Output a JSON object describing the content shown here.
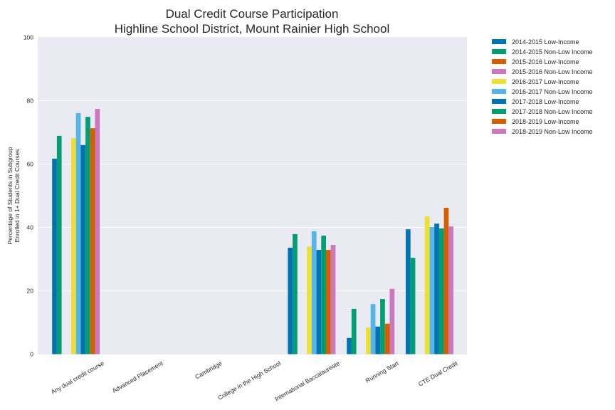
{
  "chart_data": {
    "type": "bar",
    "title": "Dual Credit Course Participation",
    "subtitle": "Highline School District, Mount Rainier High School",
    "xlabel": "",
    "ylabel": "Percentage of Students in Subgroup\nEnrolled in 1+ Dual Credit Courses",
    "ylabel_lines": [
      "Percentage of Students in Subgroup",
      "Enrolled in 1+ Dual Credit Courses"
    ],
    "ylim": [
      0,
      100
    ],
    "yticks": [
      0,
      20,
      40,
      60,
      80,
      100
    ],
    "grid": true,
    "legend_position": "outside-right-top",
    "categories": [
      "Any dual credit course",
      "Advanced Placement",
      "Cambridge",
      "College in the High School",
      "International Baccalaureate",
      "Running Start",
      "CTE Dual Credit"
    ],
    "series": [
      {
        "name": "2014-2015 Low-Income",
        "color": "#0173B2",
        "values": [
          61.7,
          null,
          null,
          null,
          33.6,
          5.1,
          39.4
        ]
      },
      {
        "name": "2014-2015 Non-Low Income",
        "color": "#029E73",
        "values": [
          68.9,
          null,
          null,
          null,
          37.9,
          14.3,
          30.4
        ]
      },
      {
        "name": "2015-2016 Low-Income",
        "color": "#D55E00",
        "values": [
          null,
          null,
          null,
          null,
          null,
          null,
          null
        ]
      },
      {
        "name": "2015-2016 Non-Low Income",
        "color": "#CC78BC",
        "values": [
          null,
          null,
          null,
          null,
          null,
          null,
          null
        ]
      },
      {
        "name": "2016-2017 Low-Income",
        "color": "#ECE133",
        "values": [
          68.2,
          null,
          null,
          null,
          34.0,
          8.4,
          43.5
        ]
      },
      {
        "name": "2016-2017 Non-Low Income",
        "color": "#56B4E9",
        "values": [
          76.1,
          null,
          null,
          null,
          38.8,
          15.8,
          40.1
        ]
      },
      {
        "name": "2017-2018 Low-Income",
        "color": "#0173B2",
        "values": [
          66.0,
          null,
          null,
          null,
          32.9,
          8.7,
          41.2
        ]
      },
      {
        "name": "2017-2018 Non-Low Income",
        "color": "#029E73",
        "values": [
          74.9,
          null,
          null,
          null,
          37.4,
          17.4,
          39.7
        ]
      },
      {
        "name": "2018-2019 Low-Income",
        "color": "#D55E00",
        "values": [
          71.3,
          null,
          null,
          null,
          32.9,
          9.6,
          46.2
        ]
      },
      {
        "name": "2018-2019 Non-Low Income",
        "color": "#CC78BC",
        "values": [
          77.4,
          null,
          null,
          null,
          34.5,
          20.6,
          40.3
        ]
      }
    ]
  },
  "style": {
    "plot_background": "#EAEAF2",
    "grid_color": "#FFFFFF",
    "text_color": "#262626"
  }
}
